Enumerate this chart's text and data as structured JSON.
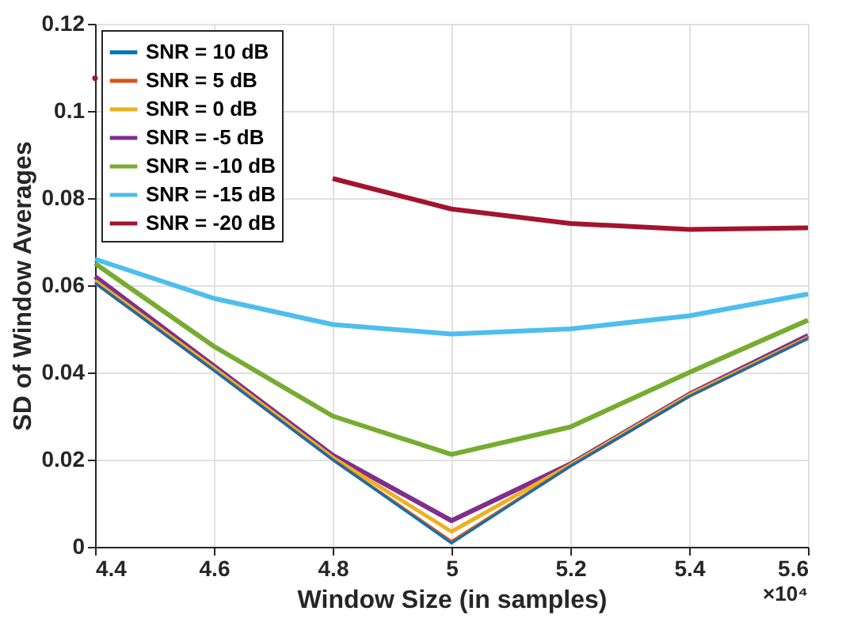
{
  "chart_data": {
    "type": "line",
    "xlabel": "Window Size (in samples)",
    "ylabel": "SD of Window Averages",
    "x": [
      4.4,
      4.6,
      4.8,
      5.0,
      5.2,
      5.4,
      5.6
    ],
    "xlim": [
      4.4,
      5.6
    ],
    "xticks": [
      4.4,
      4.6,
      4.8,
      5,
      5.2,
      5.4,
      5.6
    ],
    "ylim": [
      0,
      0.12
    ],
    "yticks": [
      0,
      0.02,
      0.04,
      0.06,
      0.08,
      0.1,
      0.12
    ],
    "annotations": [
      "×10⁴"
    ],
    "grid": true,
    "legend": "top left",
    "marker": "none",
    "line_style": "solid",
    "series": [
      {
        "name": "SNR = 10 dB",
        "color": "#0072bd",
        "values": [
          0.0605,
          0.0405,
          0.02,
          0.0008,
          0.0185,
          0.0345,
          0.0478
        ]
      },
      {
        "name": "SNR = 5 dB",
        "color": "#d95319",
        "values": [
          0.0605,
          0.0405,
          0.02,
          0.0012,
          0.0185,
          0.0345,
          0.0478
        ]
      },
      {
        "name": "SNR = 0 dB",
        "color": "#edb120",
        "values": [
          0.061,
          0.041,
          0.0205,
          0.0035,
          0.0188,
          0.0348,
          0.048
        ]
      },
      {
        "name": "SNR = -5 dB",
        "color": "#7e2f8e",
        "values": [
          0.062,
          0.0415,
          0.021,
          0.006,
          0.019,
          0.035,
          0.0485
        ]
      },
      {
        "name": "SNR = -10 dB",
        "color": "#77ac30",
        "values": [
          0.065,
          0.046,
          0.03,
          0.0212,
          0.0275,
          0.04,
          0.052
        ]
      },
      {
        "name": "SNR = -15 dB",
        "color": "#4dbeee",
        "values": [
          0.066,
          0.057,
          0.051,
          0.0488,
          0.05,
          0.053,
          0.058
        ]
      },
      {
        "name": "SNR = -20 dB",
        "color": "#a2142f",
        "values": [
          0.1075,
          null,
          0.0845,
          0.0775,
          0.0742,
          0.0728,
          0.0732
        ]
      }
    ]
  }
}
